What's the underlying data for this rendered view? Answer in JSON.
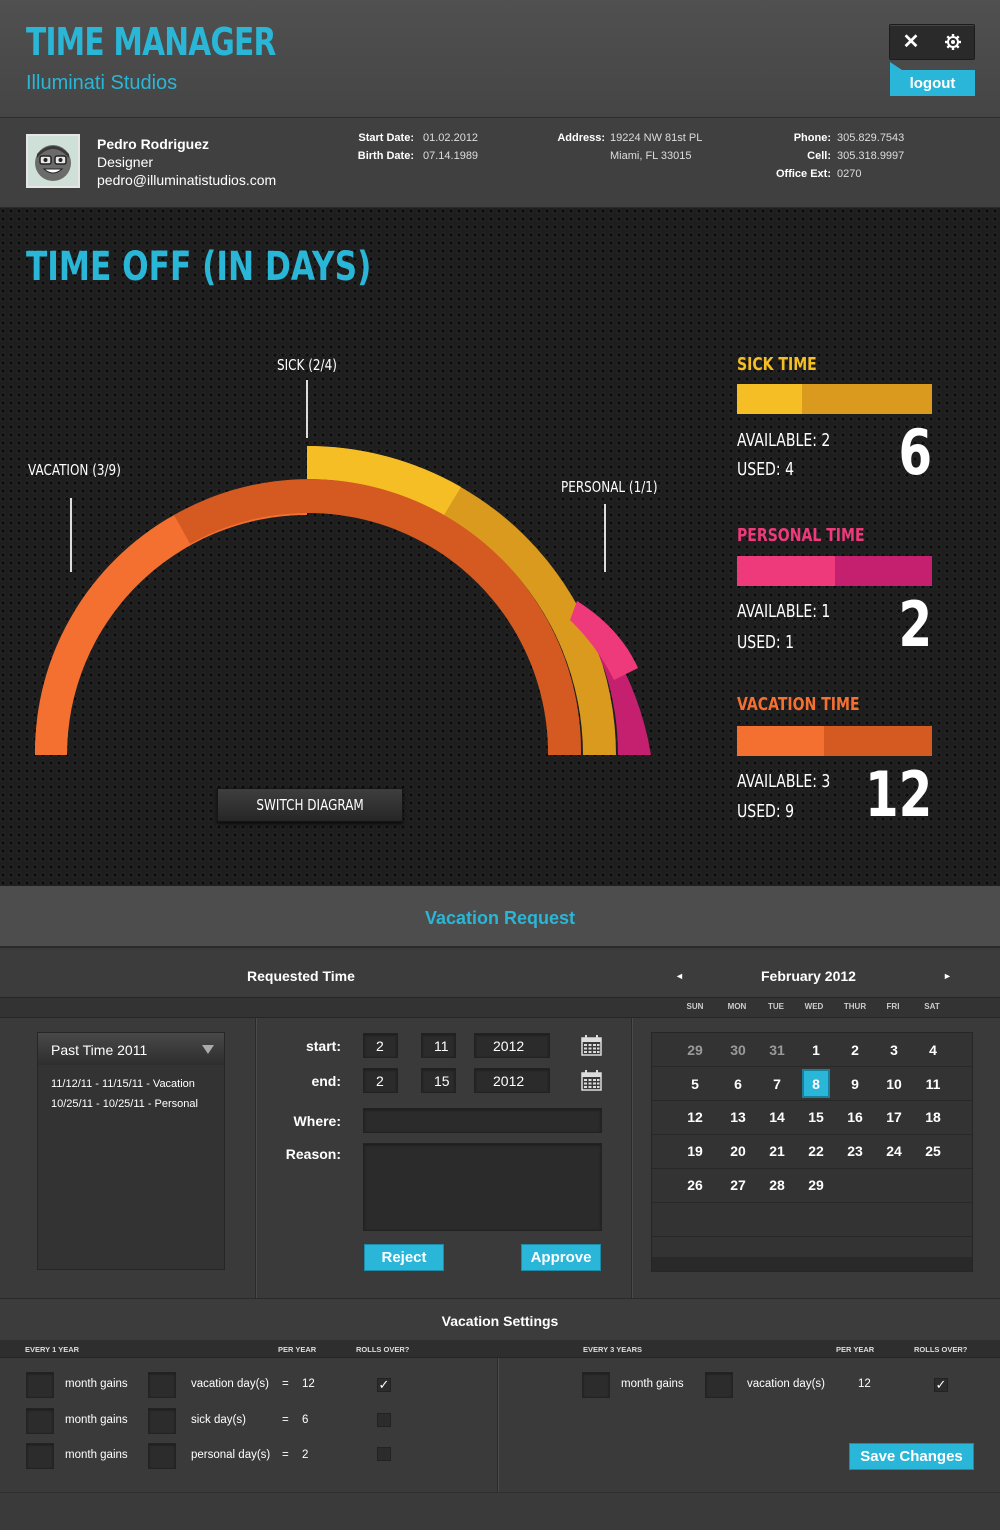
{
  "header": {
    "title": "TIME MANAGER",
    "subtitle": "Illuminati Studios",
    "close_icon": "close-icon",
    "settings_icon": "gear-icon",
    "logout_label": "logout"
  },
  "profile": {
    "name": "Pedro Rodriguez",
    "role": "Designer",
    "email": "pedro@illuminatistudios.com",
    "start_date_label": "Start Date:",
    "start_date": "01.02.2012",
    "birth_date_label": "Birth Date:",
    "birth_date": "07.14.1989",
    "address_label": "Address:",
    "address_line1": "19224 NW 81st PL",
    "address_line2": "Miami, FL 33015",
    "phone_label": "Phone:",
    "phone": "305.829.7543",
    "cell_label": "Cell:",
    "cell": "305.318.9997",
    "office_label": "Office Ext:",
    "office": "0270"
  },
  "time_off": {
    "title": "TIME OFF (IN DAYS)",
    "labels": {
      "sick": "SICK (2/4)",
      "vacation": "VACATION (3/9)",
      "personal": "PERSONAL (1/1)"
    },
    "switch_label": "SWITCH DIAGRAM",
    "stats": [
      {
        "title": "SICK TIME",
        "available": "AVAILABLE: 2",
        "used": "USED: 4",
        "total": "6",
        "color": "#f5be25",
        "color_dark": "#d99a1d",
        "available_frac": 0.333
      },
      {
        "title": "PERSONAL TIME",
        "available": "AVAILABLE: 1",
        "used": "USED: 1",
        "total": "2",
        "color": "#ee3a7a",
        "color_dark": "#c51f6f",
        "available_frac": 0.5
      },
      {
        "title": "VACATION TIME",
        "available": "AVAILABLE: 3",
        "used": "USED: 9",
        "total": "12",
        "color": "#f47030",
        "color_dark": "#d55a22",
        "available_frac": 0.444
      }
    ]
  },
  "vacation_request": {
    "title": "Vacation Request",
    "requested_time": "Requested Time",
    "month": "February 2012",
    "prev_icon": "◄",
    "next_icon": "►",
    "weekdays": [
      "SUN",
      "MON",
      "TUE",
      "WED",
      "THUR",
      "FRI",
      "SAT"
    ],
    "past_title": "Past Time 2011",
    "past_items": [
      "11/12/11 - 11/15/11  -  Vacation",
      "10/25/11 - 10/25/11  -  Personal"
    ],
    "start_label": "start:",
    "end_label": "end:",
    "where_label": "Where:",
    "reason_label": "Reason:",
    "start": {
      "month": "2",
      "day": "11",
      "year": "2012"
    },
    "end": {
      "month": "2",
      "day": "15",
      "year": "2012"
    },
    "reject_label": "Reject",
    "approve_label": "Approve",
    "calendar_weeks": [
      [
        "29",
        "30",
        "31",
        "1",
        "2",
        "3",
        "4"
      ],
      [
        "5",
        "6",
        "7",
        "8",
        "9",
        "10",
        "11"
      ],
      [
        "12",
        "13",
        "14",
        "15",
        "16",
        "17",
        "18"
      ],
      [
        "19",
        "20",
        "21",
        "22",
        "23",
        "24",
        "25"
      ],
      [
        "26",
        "27",
        "28",
        "29",
        "",
        "",
        ""
      ]
    ],
    "selected_day": "8"
  },
  "settings": {
    "title": "Vacation Settings",
    "left_caption": "EVERY 1 YEAR",
    "right_caption": "EVERY 3 YEARS",
    "per_year": "PER YEAR",
    "rolls_over": "ROLLS OVER?",
    "month_gains": "month gains",
    "rows": [
      {
        "type": "vacation day(s)",
        "eq": "=",
        "value": "12",
        "checked": "✓"
      },
      {
        "type": "sick day(s)",
        "eq": "=",
        "value": "6",
        "checked": ""
      },
      {
        "type": "personal day(s)",
        "eq": "=",
        "value": "2",
        "checked": ""
      }
    ],
    "right_row": {
      "type": "vacation day(s)",
      "value": "12",
      "checked": "✓"
    },
    "save_label": "Save Changes"
  }
}
